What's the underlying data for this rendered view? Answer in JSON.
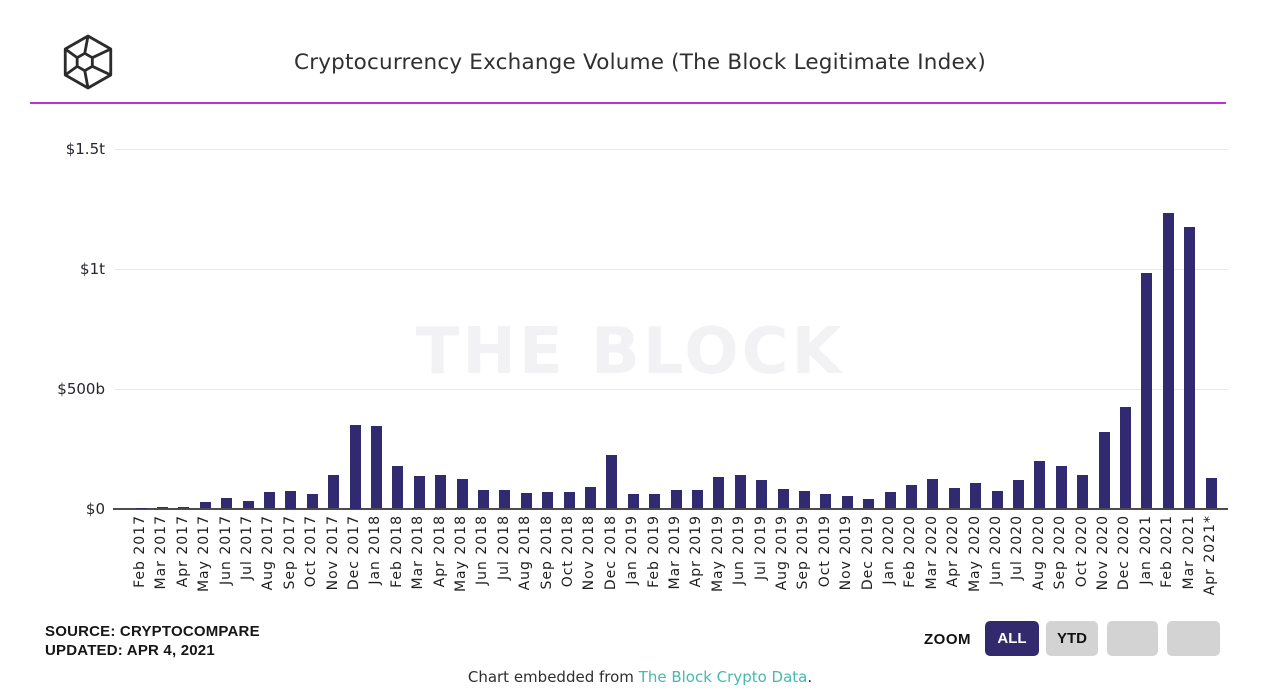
{
  "header": {
    "title": "Cryptocurrency Exchange Volume (The Block Legitimate Index)"
  },
  "watermark": "THE BLOCK",
  "chart_data": {
    "type": "bar",
    "title": "Cryptocurrency Exchange Volume (The Block Legitimate Index)",
    "xlabel": "",
    "ylabel": "",
    "unit": "USD billions",
    "ylim": [
      0,
      1500
    ],
    "grid": true,
    "bar_color": "#322a70",
    "yticks": [
      {
        "label": "$1.5t",
        "value": 1500
      },
      {
        "label": "$1t",
        "value": 1000
      },
      {
        "label": "$500b",
        "value": 500
      },
      {
        "label": "$0",
        "value": 0
      }
    ],
    "categories": [
      "Feb 2017",
      "Mar 2017",
      "Apr 2017",
      "May 2017",
      "Jun 2017",
      "Jul 2017",
      "Aug 2017",
      "Sep 2017",
      "Oct 2017",
      "Nov 2017",
      "Dec 2017",
      "Jan 2018",
      "Feb 2018",
      "Mar 2018",
      "Apr 2018",
      "May 2018",
      "Jun 2018",
      "Jul 2018",
      "Aug 2018",
      "Sep 2018",
      "Oct 2018",
      "Nov 2018",
      "Dec 2018",
      "Jan 2019",
      "Feb 2019",
      "Mar 2019",
      "Apr 2019",
      "May 2019",
      "Jun 2019",
      "Jul 2019",
      "Aug 2019",
      "Sep 2019",
      "Oct 2019",
      "Nov 2019",
      "Dec 2019",
      "Jan 2020",
      "Feb 2020",
      "Mar 2020",
      "Apr 2020",
      "May 2020",
      "Jun 2020",
      "Jul 2020",
      "Aug 2020",
      "Sep 2020",
      "Oct 2020",
      "Nov 2020",
      "Dec 2020",
      "Jan 2021",
      "Feb 2021",
      "Mar 2021",
      "Apr 2021*"
    ],
    "values": [
      2,
      7,
      7,
      27,
      42,
      33,
      67,
      75,
      62,
      138,
      350,
      342,
      176,
      136,
      138,
      121,
      77,
      76,
      66,
      70,
      69,
      90,
      222,
      59,
      59,
      78,
      78,
      130,
      140,
      120,
      80,
      73,
      59,
      52,
      38,
      69,
      97,
      121,
      87,
      108,
      71,
      117,
      196,
      178,
      138,
      317,
      421,
      980,
      1230,
      1171,
      129
    ]
  },
  "source": {
    "line1": "SOURCE: CRYPTOCOMPARE",
    "line2": "UPDATED: APR 4, 2021"
  },
  "zoom_controls": {
    "label": "ZOOM",
    "buttons": [
      {
        "label": "ALL",
        "active": true
      },
      {
        "label": "YTD",
        "active": false
      },
      {
        "label": "",
        "active": false
      },
      {
        "label": "",
        "active": false
      }
    ]
  },
  "footer": {
    "prefix": "Chart embedded from ",
    "link": "The Block Crypto Data",
    "suffix": "."
  },
  "colors": {
    "bar": "#322a70",
    "accent_line": "#c02ddb",
    "active_button_bg": "#322a6d",
    "inactive_button_bg": "#d3d3d3",
    "link": "#45b8b0",
    "watermark": "#f2f2f4"
  }
}
